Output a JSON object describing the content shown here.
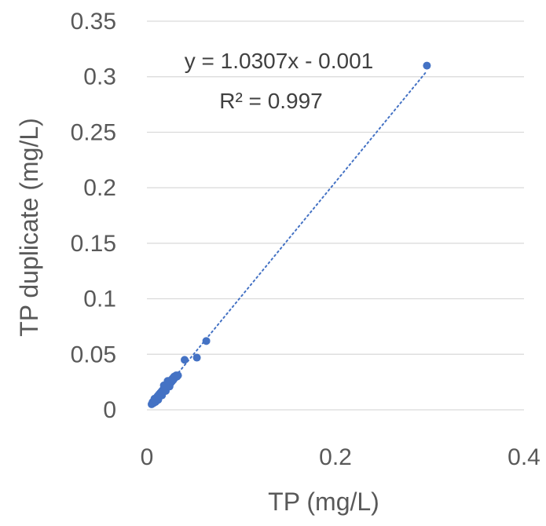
{
  "chart_data": {
    "type": "scatter",
    "xlabel": "TP (mg/L)",
    "ylabel": "TP duplicate (mg/L)",
    "xlim": [
      0,
      0.4
    ],
    "ylim": [
      0,
      0.35
    ],
    "x_ticks": [
      "0",
      "0.2",
      "0.4"
    ],
    "y_ticks": [
      "0",
      "0.05",
      "0.1",
      "0.15",
      "0.2",
      "0.25",
      "0.3",
      "0.35"
    ],
    "grid": "horizontal",
    "marker_color": "#4472c4",
    "trendline": {
      "type": "linear",
      "slope": 1.0307,
      "intercept": -0.001,
      "equation_label": "y = 1.0307x - 0.001",
      "r2_label": "R² = 0.997",
      "style": "dotted"
    },
    "series": [
      {
        "points": [
          [
            0.005,
            0.005
          ],
          [
            0.006,
            0.007
          ],
          [
            0.007,
            0.006
          ],
          [
            0.008,
            0.008
          ],
          [
            0.009,
            0.009
          ],
          [
            0.009,
            0.007
          ],
          [
            0.01,
            0.01
          ],
          [
            0.01,
            0.008
          ],
          [
            0.011,
            0.012
          ],
          [
            0.011,
            0.01
          ],
          [
            0.012,
            0.011
          ],
          [
            0.012,
            0.013
          ],
          [
            0.013,
            0.014
          ],
          [
            0.013,
            0.012
          ],
          [
            0.014,
            0.015
          ],
          [
            0.014,
            0.013
          ],
          [
            0.015,
            0.016
          ],
          [
            0.015,
            0.014
          ],
          [
            0.016,
            0.017
          ],
          [
            0.016,
            0.015
          ],
          [
            0.017,
            0.018
          ],
          [
            0.017,
            0.016
          ],
          [
            0.018,
            0.019
          ],
          [
            0.018,
            0.017
          ],
          [
            0.019,
            0.02
          ],
          [
            0.019,
            0.018
          ],
          [
            0.02,
            0.021
          ],
          [
            0.02,
            0.019
          ],
          [
            0.021,
            0.022
          ],
          [
            0.021,
            0.02
          ],
          [
            0.022,
            0.023
          ],
          [
            0.022,
            0.021
          ],
          [
            0.023,
            0.024
          ],
          [
            0.023,
            0.022
          ],
          [
            0.024,
            0.025
          ],
          [
            0.024,
            0.023
          ],
          [
            0.025,
            0.026
          ],
          [
            0.025,
            0.024
          ],
          [
            0.026,
            0.027
          ],
          [
            0.026,
            0.025
          ],
          [
            0.027,
            0.028
          ],
          [
            0.027,
            0.026
          ],
          [
            0.028,
            0.029
          ],
          [
            0.028,
            0.027
          ],
          [
            0.029,
            0.03
          ],
          [
            0.03,
            0.029
          ],
          [
            0.031,
            0.031
          ],
          [
            0.032,
            0.03
          ],
          [
            0.033,
            0.031
          ],
          [
            0.008,
            0.01
          ],
          [
            0.012,
            0.009
          ],
          [
            0.016,
            0.013
          ],
          [
            0.02,
            0.017
          ],
          [
            0.024,
            0.021
          ],
          [
            0.018,
            0.022
          ],
          [
            0.022,
            0.026
          ],
          [
            0.04,
            0.045
          ],
          [
            0.053,
            0.047
          ],
          [
            0.063,
            0.062
          ],
          [
            0.297,
            0.31
          ]
        ]
      }
    ]
  }
}
